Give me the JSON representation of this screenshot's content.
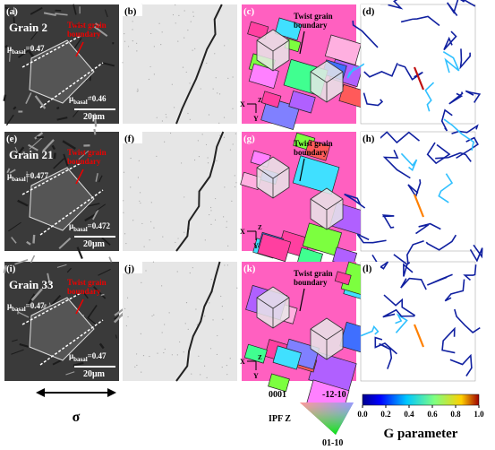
{
  "panels": [
    {
      "label": "(a)",
      "grain": "Grain 2",
      "boundary": [
        "Twist grain",
        "boundary"
      ],
      "schmid": [
        {
          "mu": "μ",
          "sub": "basal",
          "val": "=0.47"
        },
        {
          "mu": "μ",
          "sub": "basal",
          "val": "=0.46"
        }
      ],
      "scale": "20μm"
    },
    {
      "label": "(b)"
    },
    {
      "label": "(c)",
      "boundary": [
        "Twist grain",
        "boundary"
      ],
      "axes": [
        "X",
        "Z",
        "Y"
      ]
    },
    {
      "label": "(d)"
    },
    {
      "label": "(e)",
      "grain": "Grain 21",
      "boundary": [
        "Twist grain",
        "boundary"
      ],
      "schmid": [
        {
          "mu": "μ",
          "sub": "basal",
          "val": "=0.477"
        },
        {
          "mu": "μ",
          "sub": "basal",
          "val": "=0.472"
        }
      ],
      "scale": "20μm"
    },
    {
      "label": "(f)"
    },
    {
      "label": "(g)",
      "boundary": [
        "Twist grain",
        "boundary"
      ],
      "axes": [
        "X",
        "Z",
        "Y"
      ]
    },
    {
      "label": "(h)"
    },
    {
      "label": "(i)",
      "grain": "Grain 33",
      "boundary": [
        "Twist grain",
        "boundary"
      ],
      "schmid": [
        {
          "mu": "μ",
          "sub": "basal",
          "val": "=0.47"
        },
        {
          "mu": "μ",
          "sub": "basal",
          "val": "=0.47"
        }
      ],
      "scale": "20μm"
    },
    {
      "label": "(j)"
    },
    {
      "label": "(k)",
      "boundary": [
        "Twist grain",
        "boundary"
      ],
      "axes": [
        "X",
        "Z",
        "Y"
      ]
    },
    {
      "label": "(l)"
    }
  ],
  "sigma": "σ",
  "ipf": {
    "title": "IPF Z",
    "corners": [
      "0001",
      "-12-10",
      "01-10"
    ]
  },
  "colorbar": {
    "title": "G parameter",
    "ticks": [
      {
        "value": 0,
        "label": "0.0"
      },
      {
        "value": 0.2,
        "label": "0.2"
      },
      {
        "value": 0.4,
        "label": "0.4"
      },
      {
        "value": 0.6,
        "label": "0.6"
      },
      {
        "value": 0.8,
        "label": "0.8"
      },
      {
        "value": 1,
        "label": "1.0"
      }
    ]
  }
}
